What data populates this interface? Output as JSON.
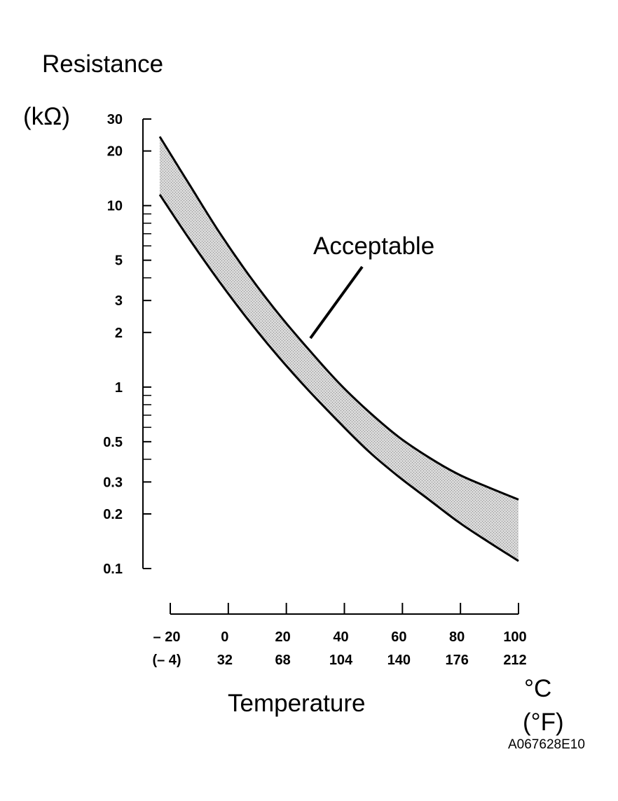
{
  "chart_data": {
    "type": "area",
    "ylabel": "Resistance",
    "yunit": "(kΩ)",
    "xlabel": "Temperature",
    "xunit_c": "°C",
    "xunit_f": "(°F)",
    "y_scale": "log",
    "ylim": [
      0.1,
      30
    ],
    "xlim": [
      -20,
      100
    ],
    "y_ticks": [
      {
        "value": 30,
        "label": "30"
      },
      {
        "value": 20,
        "label": "20"
      },
      {
        "value": 10,
        "label": "10"
      },
      {
        "value": 5,
        "label": "5"
      },
      {
        "value": 3,
        "label": "3"
      },
      {
        "value": 2,
        "label": "2"
      },
      {
        "value": 1,
        "label": "1"
      },
      {
        "value": 0.5,
        "label": "0.5"
      },
      {
        "value": 0.3,
        "label": "0.3"
      },
      {
        "value": 0.2,
        "label": "0.2"
      },
      {
        "value": 0.1,
        "label": "0.1"
      }
    ],
    "y_minor_ticks": [
      9,
      8,
      7,
      6,
      4,
      0.9,
      0.8,
      0.7,
      0.6,
      0.4
    ],
    "x_ticks": [
      {
        "value": -20,
        "label_c": "– 20",
        "label_f": "(– 4)"
      },
      {
        "value": 0,
        "label_c": "0",
        "label_f": "32"
      },
      {
        "value": 20,
        "label_c": "20",
        "label_f": "68"
      },
      {
        "value": 40,
        "label_c": "40",
        "label_f": "104"
      },
      {
        "value": 60,
        "label_c": "60",
        "label_f": "140"
      },
      {
        "value": 80,
        "label_c": "80",
        "label_f": "176"
      },
      {
        "value": 100,
        "label_c": "100",
        "label_f": "212"
      }
    ],
    "series": [
      {
        "name": "upper limit",
        "x": [
          -20,
          -10,
          0,
          10,
          20,
          30,
          40,
          50,
          60,
          70,
          80,
          90,
          100
        ],
        "values": [
          24,
          13,
          7.1,
          4.1,
          2.5,
          1.6,
          1.05,
          0.73,
          0.53,
          0.41,
          0.33,
          0.28,
          0.24
        ]
      },
      {
        "name": "lower limit",
        "x": [
          -20,
          -10,
          0,
          10,
          20,
          30,
          40,
          50,
          60,
          70,
          80,
          90,
          100
        ],
        "values": [
          11.5,
          6.5,
          3.8,
          2.3,
          1.45,
          0.95,
          0.64,
          0.44,
          0.32,
          0.24,
          0.18,
          0.14,
          0.11
        ]
      }
    ],
    "annotations": [
      {
        "text": "Acceptable",
        "x": 30,
        "y": 1.9
      }
    ]
  },
  "figure_id": "A067628E10"
}
